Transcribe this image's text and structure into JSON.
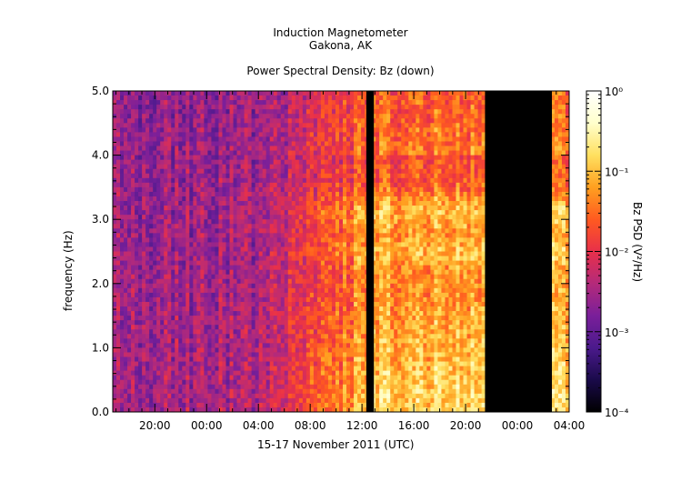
{
  "header": {
    "title": "Induction Magnetometer",
    "subtitle": "Gakona, AK",
    "plot_title": "Power Spectral Density: Bz (down)"
  },
  "chart_data": {
    "type": "heatmap",
    "title": "Power Spectral Density: Bz (down)",
    "xlabel": "15-17 November 2011 (UTC)",
    "ylabel": "frequency (Hz)",
    "ylim": [
      0,
      5
    ],
    "y_ticks": [
      0.0,
      1.0,
      2.0,
      3.0,
      4.0,
      5.0
    ],
    "y_tick_labels": [
      "0.0",
      "1.0",
      "2.0",
      "3.0",
      "4.0",
      "5.0"
    ],
    "x_tick_labels": [
      "20:00",
      "00:00",
      "04:00",
      "08:00",
      "12:00",
      "16:00",
      "20:00",
      "00:00",
      "04:00"
    ],
    "x_range": [
      "2011-11-15T16:45",
      "2011-11-17T04:00"
    ],
    "data_gaps": [
      [
        "2011-11-16T12:20",
        "2011-11-16T12:55"
      ],
      [
        "2011-11-16T21:30",
        "2011-11-17T02:40"
      ]
    ],
    "colorbar": {
      "label": "Bz PSD (V²/Hz)",
      "scale": "log",
      "range": [
        0.0001,
        1
      ],
      "tick_labels": [
        "10⁻⁴",
        "10⁻³",
        "10⁻²",
        "10⁻¹",
        "10⁰"
      ],
      "colormap": [
        "#000000",
        "#1a0a4a",
        "#4b1a8c",
        "#7a1f9a",
        "#b42a7a",
        "#e8304a",
        "#ff5a20",
        "#ffa020",
        "#ffe060",
        "#ffffcc",
        "#ffffff"
      ]
    }
  }
}
